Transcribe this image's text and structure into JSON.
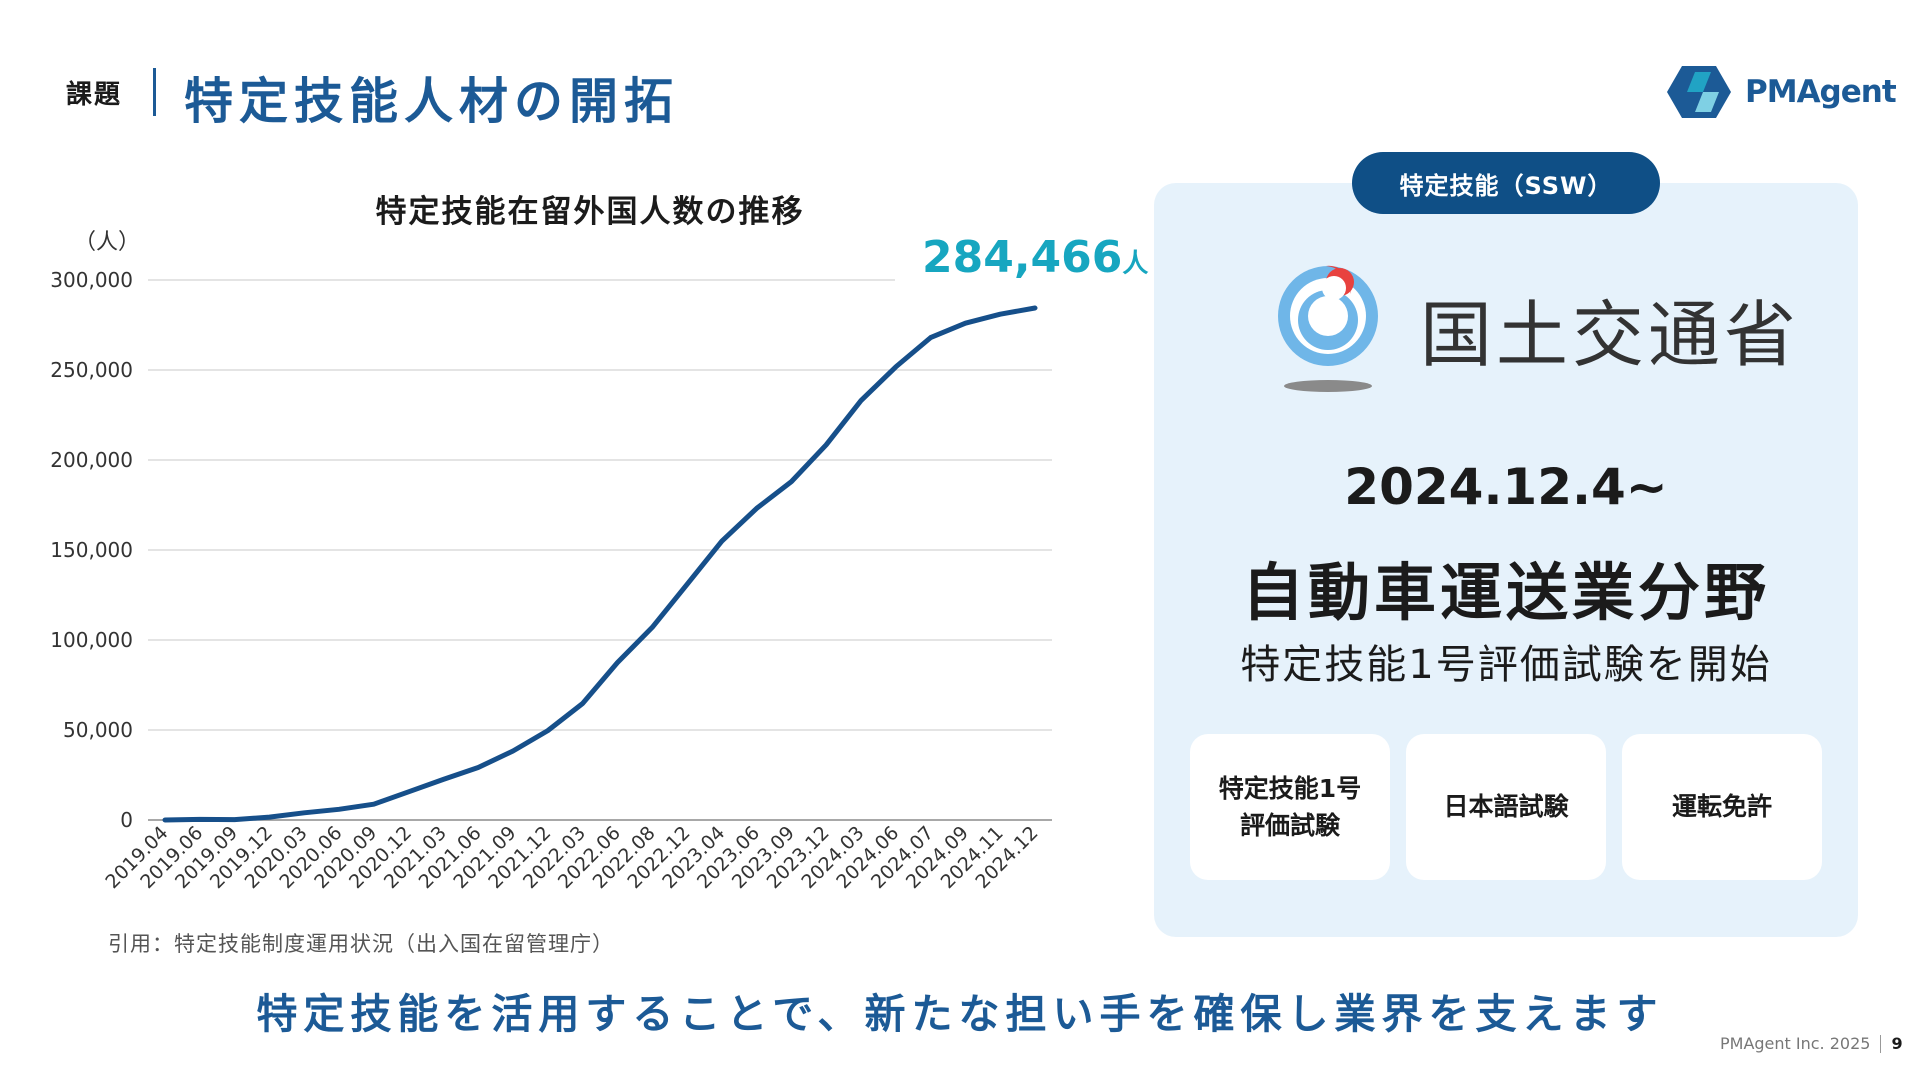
{
  "header": {
    "section_tag": "課題",
    "title": "特定技能人材の開拓",
    "logo_text": "PMAgent"
  },
  "chart_data": {
    "type": "line",
    "title": "特定技能在留外国人数の推移",
    "ylabel": "（人）",
    "ylim": [
      0,
      300000
    ],
    "y_ticks": [
      0,
      50000,
      100000,
      150000,
      200000,
      250000,
      300000
    ],
    "y_tick_labels": [
      "0",
      "50,000",
      "100,000",
      "150,000",
      "200,000",
      "250,000",
      "300,000"
    ],
    "x_labels": [
      "2019.04",
      "2019.06",
      "2019.09",
      "2019.12",
      "2020.03",
      "2020.06",
      "2020.09",
      "2020.12",
      "2021.03",
      "2021.06",
      "2021.09",
      "2021.12",
      "2022.03",
      "2022.06",
      "2022.08",
      "2022.12",
      "2023.04",
      "2023.06",
      "2023.09",
      "2023.12",
      "2024.03",
      "2024.06",
      "2024.07",
      "2024.09",
      "2024.11",
      "2024.12"
    ],
    "x": [
      "2019.04",
      "2019.06",
      "2019.09",
      "2019.12",
      "2020.03",
      "2020.06",
      "2020.09",
      "2020.12",
      "2021.03",
      "2021.06",
      "2021.09",
      "2021.12",
      "2022.03",
      "2022.06",
      "2022.08",
      "2022.12",
      "2023.04",
      "2023.06",
      "2023.09",
      "2023.12",
      "2024.03",
      "2024.06",
      "2024.07",
      "2024.09",
      "2024.11",
      "2024.12"
    ],
    "series": [
      {
        "values": [
          20,
          336,
          219,
          1621,
          3987,
          5950,
          8769,
          15663,
          22567,
          29144,
          38337,
          49666,
          64730,
          87471,
          107000,
          130915,
          154864,
          173089,
          188000,
          208462,
          233000,
          251747,
          268000,
          276000,
          281000,
          284466
        ],
        "color": "#164f8a"
      }
    ],
    "grid": true,
    "callout": {
      "value": "284,466",
      "unit": "人"
    },
    "source": "引用：特定技能制度運用状況（出入国在留管理庁）"
  },
  "panel": {
    "pill_label": "特定技能（SSW）",
    "ministry": "国土交通省",
    "date": "2024.12.4~",
    "field": "自動車運送業分野",
    "exam": "特定技能1号評価試験を開始",
    "requirements": [
      "特定技能1号\n評価試験",
      "日本語試験",
      "運転免許"
    ]
  },
  "tagline": "特定技能を活用することで、新たな担い手を確保し業界を支えます",
  "footer": {
    "company": "PMAgent Inc. 2025",
    "page": "9"
  },
  "colors": {
    "brand": "#1c5a96",
    "accent": "#17a6c0",
    "panel_bg": "#e6f2fb",
    "pill": "#0f4f86"
  }
}
